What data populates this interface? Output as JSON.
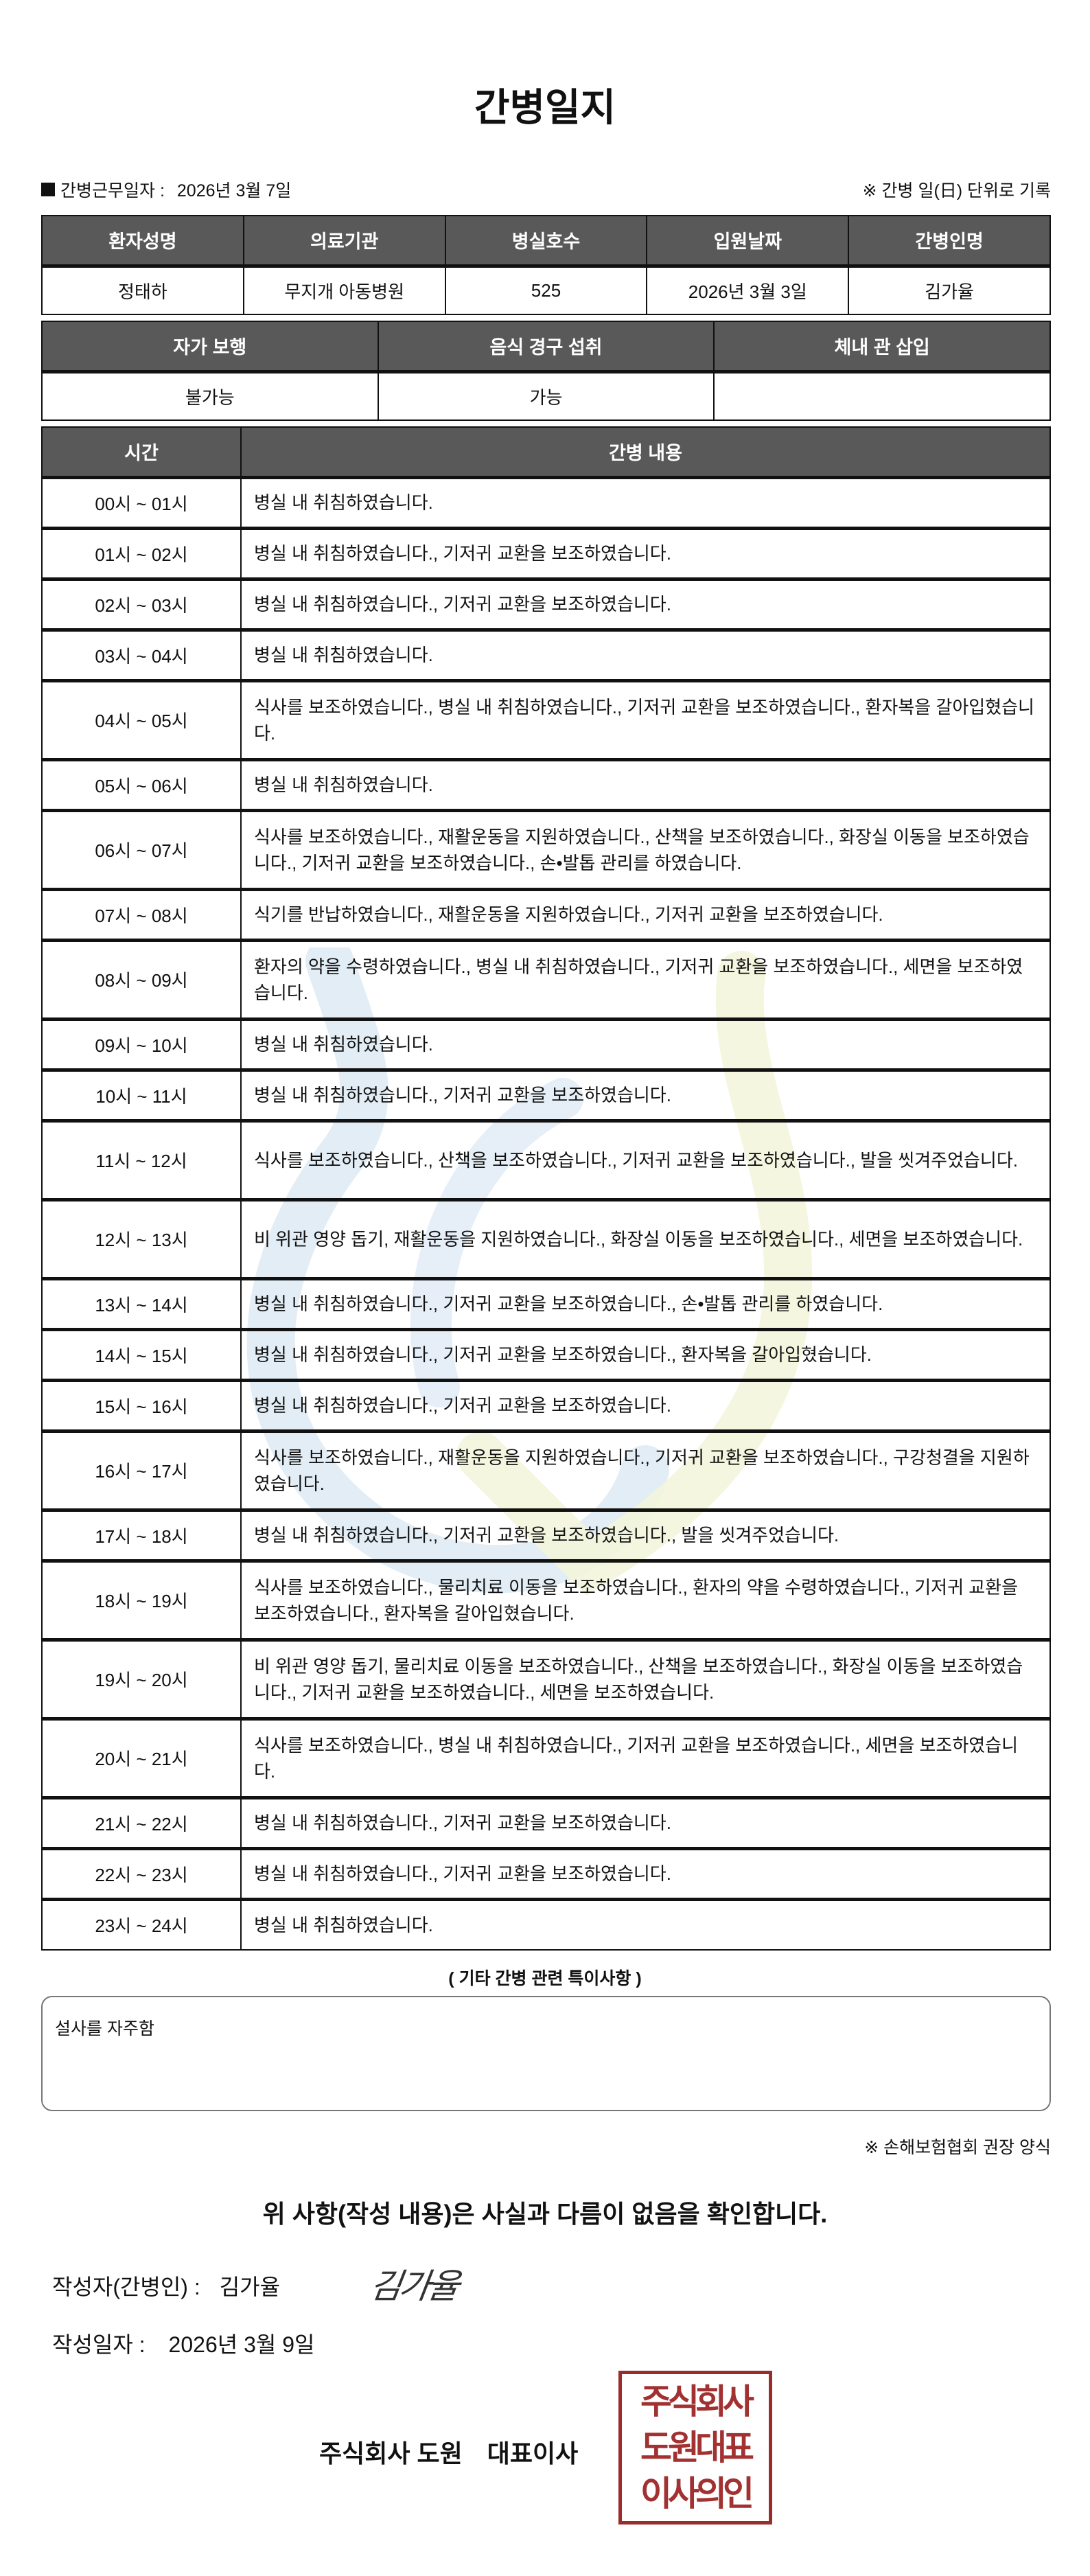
{
  "title": "간병일지",
  "info": {
    "work_date_label": "간병근무일자 :",
    "work_date": "2026년 3월 7일",
    "note": "※ 간병 일(日) 단위로 기록"
  },
  "patient_table": {
    "headers": [
      "환자성명",
      "의료기관",
      "병실호수",
      "입원날짜",
      "간병인명"
    ],
    "values": [
      "정태하",
      "무지개 아동병원",
      "525",
      "2026년 3월 3일",
      "김가율"
    ]
  },
  "status_table": {
    "headers": [
      "자가 보행",
      "음식 경구 섭취",
      "체내 관 삽입"
    ],
    "values": [
      "불가능",
      "가능",
      ""
    ]
  },
  "log_table": {
    "headers": [
      "시간",
      "간병 내용"
    ],
    "rows": [
      {
        "time": "00시 ~ 01시",
        "content": "병실 내 취침하였습니다."
      },
      {
        "time": "01시 ~ 02시",
        "content": "병실 내 취침하였습니다., 기저귀 교환을 보조하였습니다."
      },
      {
        "time": "02시 ~ 03시",
        "content": "병실 내 취침하였습니다., 기저귀 교환을 보조하였습니다."
      },
      {
        "time": "03시 ~ 04시",
        "content": "병실 내 취침하였습니다."
      },
      {
        "time": "04시 ~ 05시",
        "content": "식사를 보조하였습니다., 병실 내 취침하였습니다., 기저귀 교환을 보조하였습니다., 환자복을 갈아입혔습니다."
      },
      {
        "time": "05시 ~ 06시",
        "content": "병실 내 취침하였습니다."
      },
      {
        "time": "06시 ~ 07시",
        "content": "식사를 보조하였습니다., 재활운동을 지원하였습니다., 산책을 보조하였습니다., 화장실 이동을 보조하였습니다., 기저귀 교환을 보조하였습니다., 손•발톱 관리를 하였습니다."
      },
      {
        "time": "07시 ~ 08시",
        "content": "식기를 반납하였습니다., 재활운동을 지원하였습니다., 기저귀 교환을 보조하였습니다."
      },
      {
        "time": "08시 ~ 09시",
        "content": "환자의 약을 수령하였습니다., 병실 내 취침하였습니다., 기저귀 교환을 보조하였습니다., 세면을 보조하였습니다."
      },
      {
        "time": "09시 ~ 10시",
        "content": "병실 내 취침하였습니다."
      },
      {
        "time": "10시 ~ 11시",
        "content": "병실 내 취침하였습니다., 기저귀 교환을 보조하였습니다."
      },
      {
        "time": "11시 ~ 12시",
        "content": "식사를 보조하였습니다., 산책을 보조하였습니다., 기저귀 교환을 보조하였습니다., 발을 씻겨주었습니다."
      },
      {
        "time": "12시 ~ 13시",
        "content": "비 위관 영양 돕기, 재활운동을 지원하였습니다., 화장실 이동을 보조하였습니다., 세면을 보조하였습니다."
      },
      {
        "time": "13시 ~ 14시",
        "content": "병실 내 취침하였습니다., 기저귀 교환을 보조하였습니다., 손•발톱 관리를 하였습니다."
      },
      {
        "time": "14시 ~ 15시",
        "content": "병실 내 취침하였습니다., 기저귀 교환을 보조하였습니다., 환자복을 갈아입혔습니다."
      },
      {
        "time": "15시 ~ 16시",
        "content": "병실 내 취침하였습니다., 기저귀 교환을 보조하였습니다."
      },
      {
        "time": "16시 ~ 17시",
        "content": "식사를 보조하였습니다., 재활운동을 지원하였습니다., 기저귀 교환을 보조하였습니다., 구강청결을 지원하였습니다."
      },
      {
        "time": "17시 ~ 18시",
        "content": "병실 내 취침하였습니다., 기저귀 교환을 보조하였습니다., 발을 씻겨주었습니다."
      },
      {
        "time": "18시 ~ 19시",
        "content": "식사를 보조하였습니다., 물리치료 이동을 보조하였습니다., 환자의 약을 수령하였습니다., 기저귀 교환을 보조하였습니다., 환자복을 갈아입혔습니다."
      },
      {
        "time": "19시 ~ 20시",
        "content": "비 위관 영양 돕기, 물리치료 이동을 보조하였습니다., 산책을 보조하였습니다., 화장실 이동을 보조하였습니다., 기저귀 교환을 보조하였습니다., 세면을 보조하였습니다."
      },
      {
        "time": "20시 ~ 21시",
        "content": "식사를 보조하였습니다., 병실 내 취침하였습니다., 기저귀 교환을 보조하였습니다., 세면을 보조하였습니다."
      },
      {
        "time": "21시 ~ 22시",
        "content": "병실 내 취침하였습니다., 기저귀 교환을 보조하였습니다."
      },
      {
        "time": "22시 ~ 23시",
        "content": "병실 내 취침하였습니다., 기저귀 교환을 보조하였습니다."
      },
      {
        "time": "23시 ~ 24시",
        "content": "병실 내 취침하였습니다."
      }
    ]
  },
  "notes": {
    "heading": "( 기타 간병 관련 특이사항 )",
    "text": "설사를 자주함"
  },
  "form_note": "※ 손해보험협회 권장 양식",
  "confirmation": "위 사항(작성 내용)은 사실과 다름이 없음을 확인합니다.",
  "writer": {
    "label": "작성자(간병인) :",
    "name": "김가율",
    "signature": "김가율"
  },
  "written_date": {
    "label": "작성일자 :",
    "value": "2026년 3월 9일"
  },
  "company": {
    "name": "주식회사 도원",
    "title": "대표이사"
  },
  "stamp": {
    "lines": [
      "주식회사",
      "도원대표",
      "이사의인"
    ],
    "color": "#9b2c2c"
  },
  "colors": {
    "header_bg": "#595959",
    "watermark_blue": "#dbe8f3",
    "watermark_yellow": "#f3f5dc"
  }
}
